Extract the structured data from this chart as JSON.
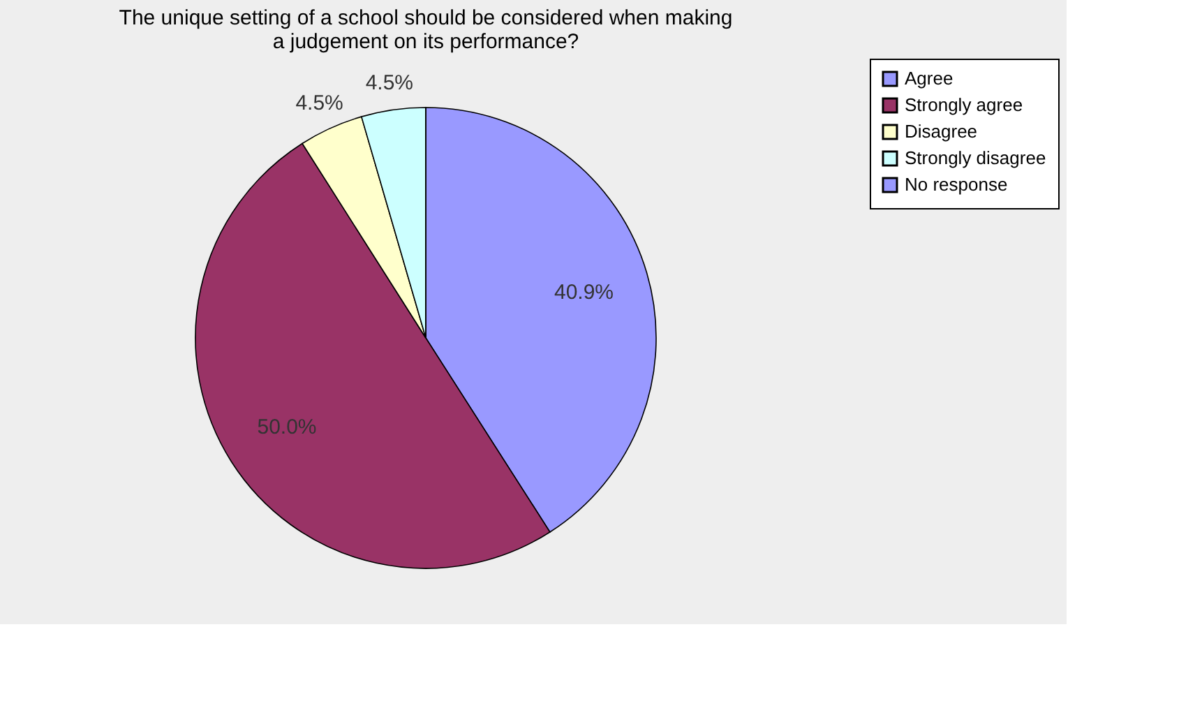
{
  "chart_data": {
    "type": "pie",
    "title": "The unique setting of a school should be considered when making a judgement on its performance?",
    "categories": [
      "Agree",
      "Strongly agree",
      "Disagree",
      "Strongly disagree",
      "No response"
    ],
    "values": [
      40.9,
      50.0,
      4.5,
      4.5,
      0
    ],
    "colors": [
      "#9999ff",
      "#993366",
      "#ffffcc",
      "#ccffff",
      "#9999ff"
    ],
    "value_labels": [
      "40.9%",
      "50.0%",
      "4.5%",
      "4.5%",
      null
    ],
    "legend": "right"
  }
}
